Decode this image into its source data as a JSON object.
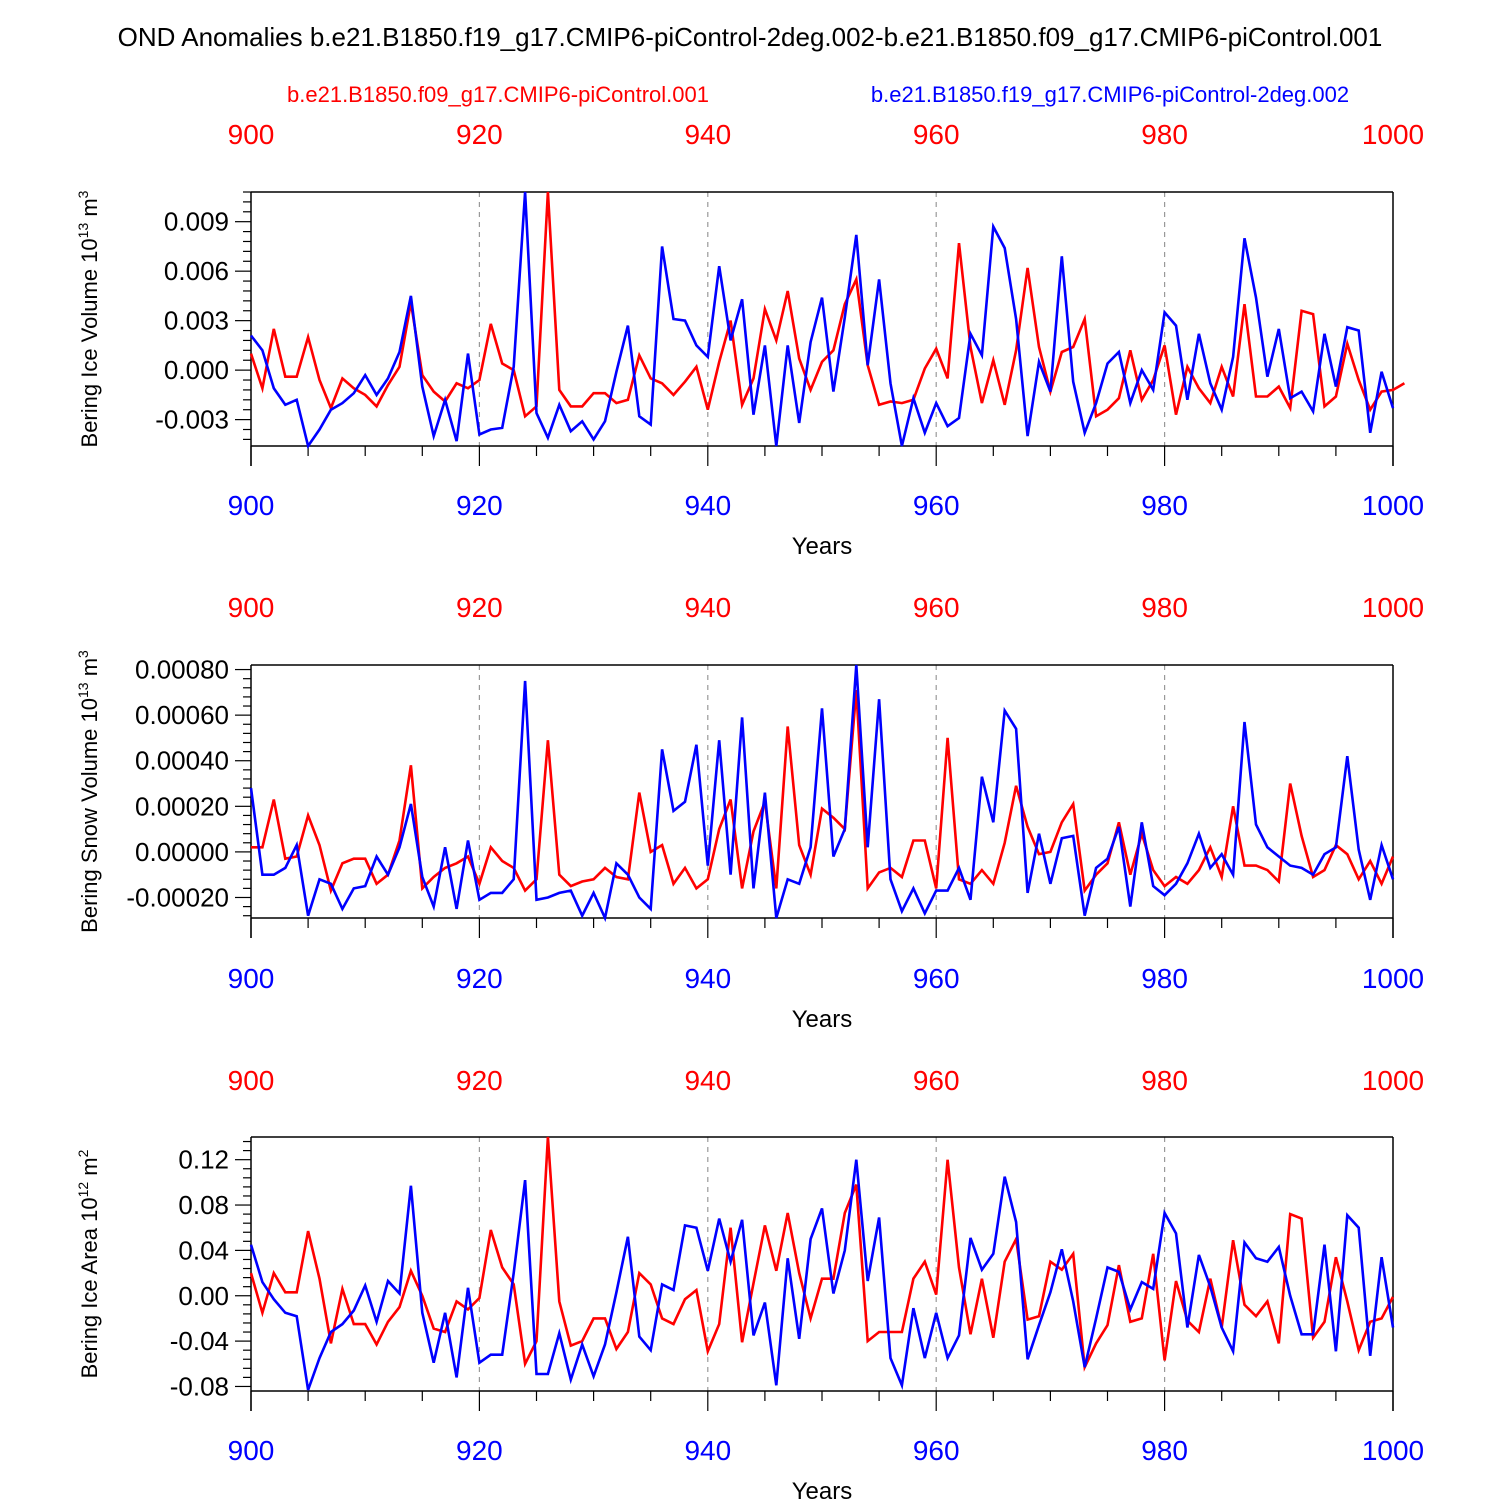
{
  "figure": {
    "title": "OND Anomalies b.e21.B1850.f19_g17.CMIP6-piControl-2deg.002-b.e21.B1850.f09_g17.CMIP6-piControl.001",
    "legend_red": "b.e21.B1850.f09_g17.CMIP6-piControl.001",
    "legend_blue": "b.e21.B1850.f19_g17.CMIP6-piControl-2deg.002"
  },
  "colors": {
    "red": "#ff0000",
    "blue": "#0000ff",
    "axis": "#000000",
    "grid": "#999999"
  },
  "chart_data": [
    {
      "type": "line",
      "title": "",
      "xlabel": "Years",
      "ylabel_main": "Bering Ice Volume 10",
      "ylabel_exp": "13",
      "ylabel_unit": " m",
      "ylabel_unit_exp": "3",
      "xlim": [
        900,
        1000
      ],
      "ylim": [
        -0.0046,
        0.0108
      ],
      "xticks": [
        900,
        920,
        940,
        960,
        980,
        1000
      ],
      "xtick_labels": [
        "900",
        "920",
        "940",
        "960",
        "980",
        "1000"
      ],
      "yticks": [
        -0.003,
        0.0,
        0.003,
        0.006,
        0.009
      ],
      "ytick_labels": [
        "-0.003",
        "0.000",
        "0.003",
        "0.006",
        "0.009"
      ],
      "series": [
        {
          "name": "b.e21.B1850.f09_g17.CMIP6-piControl.001",
          "color": "red",
          "x_start": 900,
          "values": [
            0.001,
            -0.0011,
            0.0025,
            -0.0004,
            -0.0004,
            0.002,
            -0.0006,
            -0.0023,
            -0.0005,
            -0.0011,
            -0.0015,
            -0.0022,
            -0.0009,
            0.0002,
            0.0041,
            -0.0003,
            -0.0013,
            -0.0019,
            -0.0008,
            -0.0011,
            -0.0006,
            0.0028,
            0.0004,
            0.0,
            -0.0028,
            -0.0022,
            0.0108,
            -0.0012,
            -0.0022,
            -0.0022,
            -0.0014,
            -0.0014,
            -0.002,
            -0.0018,
            0.0009,
            -0.0005,
            -0.0008,
            -0.0015,
            -0.0007,
            0.0002,
            -0.0024,
            0.0005,
            0.003,
            -0.0021,
            -0.0005,
            0.0037,
            0.0018,
            0.0048,
            0.0007,
            -0.0012,
            0.0005,
            0.0012,
            0.004,
            0.0055,
            0.0003,
            -0.0021,
            -0.0019,
            -0.002,
            -0.0018,
            0.0001,
            0.0013,
            -0.0005,
            0.0077,
            0.0014,
            -0.002,
            0.0006,
            -0.0021,
            0.0012,
            0.0062,
            0.0014,
            -0.0013,
            0.0011,
            0.0014,
            0.0031,
            -0.0028,
            -0.0024,
            -0.0017,
            0.0012,
            -0.0018,
            -0.0006,
            0.0015,
            -0.0027,
            0.0002,
            -0.0011,
            -0.002,
            0.0002,
            -0.0016,
            0.004,
            -0.0016,
            -0.0016,
            -0.001,
            -0.0023,
            0.0036,
            0.0034,
            -0.0022,
            -0.0016,
            0.0016,
            -0.0006,
            -0.0024,
            -0.0013,
            -0.0012,
            -0.0008
          ]
        },
        {
          "name": "b.e21.B1850.f19_g17.CMIP6-piControl-2deg.002",
          "color": "blue",
          "x_start": 900,
          "values": [
            0.0021,
            0.0012,
            -0.0011,
            -0.0021,
            -0.0018,
            -0.0046,
            -0.0036,
            -0.0024,
            -0.002,
            -0.0014,
            -0.0003,
            -0.0015,
            -0.0005,
            0.0011,
            0.0045,
            -0.001,
            -0.004,
            -0.0018,
            -0.0043,
            0.001,
            -0.0039,
            -0.0036,
            -0.0035,
            0.0002,
            0.0108,
            -0.0026,
            -0.0041,
            -0.0021,
            -0.0037,
            -0.0031,
            -0.0042,
            -0.0031,
            -0.0001,
            0.0027,
            -0.0028,
            -0.0033,
            0.0075,
            0.0031,
            0.003,
            0.0015,
            0.0008,
            0.0063,
            0.0018,
            0.0043,
            -0.0027,
            0.0015,
            -0.0046,
            0.0015,
            -0.0032,
            0.0017,
            0.0044,
            -0.0013,
            0.0032,
            0.0082,
            0.0003,
            0.0055,
            -0.0008,
            -0.0046,
            -0.0017,
            -0.0038,
            -0.002,
            -0.0034,
            -0.0029,
            0.0022,
            0.0009,
            0.0087,
            0.0074,
            0.0031,
            -0.004,
            0.0005,
            -0.0013,
            0.0069,
            -0.0007,
            -0.0038,
            -0.002,
            0.0004,
            0.0011,
            -0.002,
            0.0,
            -0.0012,
            0.0035,
            0.0027,
            -0.0018,
            0.0022,
            -0.0008,
            -0.0024,
            0.0008,
            0.008,
            0.0044,
            -0.0004,
            0.0025,
            -0.0017,
            -0.0013,
            -0.0025,
            0.0022,
            -0.001,
            0.0026,
            0.0024,
            -0.0038,
            -0.0001,
            -0.0023
          ]
        }
      ]
    },
    {
      "type": "line",
      "title": "",
      "xlabel": "Years",
      "ylabel_main": "Bering Snow Volume 10",
      "ylabel_exp": "13",
      "ylabel_unit": " m",
      "ylabel_unit_exp": "3",
      "xlim": [
        900,
        1000
      ],
      "ylim": [
        -0.00029,
        0.00082
      ],
      "xticks": [
        900,
        920,
        940,
        960,
        980,
        1000
      ],
      "xtick_labels": [
        "900",
        "920",
        "940",
        "960",
        "980",
        "1000"
      ],
      "yticks": [
        -0.0002,
        0.0,
        0.0002,
        0.0004,
        0.0006,
        0.0008
      ],
      "ytick_labels": [
        "-0.00020",
        "0.00000",
        "0.00020",
        "0.00040",
        "0.00060",
        "0.00080"
      ],
      "series": [
        {
          "name": "b.e21.B1850.f09_g17.CMIP6-piControl.001",
          "color": "red",
          "x_start": 900,
          "values": [
            2e-05,
            2e-05,
            0.00023,
            -3e-05,
            -2e-05,
            0.00016,
            3e-05,
            -0.00017,
            -5e-05,
            -3e-05,
            -3e-05,
            -0.00014,
            -0.0001,
            5e-05,
            0.00038,
            -0.00016,
            -0.00011,
            -7e-05,
            -5e-05,
            -2e-05,
            -0.00014,
            2e-05,
            -4e-05,
            -7e-05,
            -0.00017,
            -0.00012,
            0.00049,
            -0.0001,
            -0.00015,
            -0.00013,
            -0.00012,
            -7e-05,
            -0.00011,
            -0.00012,
            0.00026,
            0.0,
            3e-05,
            -0.00014,
            -7e-05,
            -0.00016,
            -0.00012,
            0.0001,
            0.00023,
            -0.00016,
            9e-05,
            0.00022,
            -0.00016,
            0.00055,
            3e-05,
            -0.0001,
            0.00019,
            0.00015,
            0.0001,
            0.00071,
            -0.00016,
            -9e-05,
            -7e-05,
            -0.00011,
            5e-05,
            5e-05,
            -0.00016,
            0.0005,
            -0.00012,
            -0.00014,
            -8e-05,
            -0.00014,
            4e-05,
            0.00029,
            0.00011,
            -1e-05,
            0.0,
            0.00013,
            0.00021,
            -0.00017,
            -0.0001,
            -5e-05,
            0.00013,
            -0.0001,
            8e-05,
            -8e-05,
            -0.00015,
            -0.00011,
            -0.00014,
            -8e-05,
            2e-05,
            -0.00011,
            0.0002,
            -6e-05,
            -6e-05,
            -8e-05,
            -0.00013,
            0.0003,
            7e-05,
            -0.00011,
            -8e-05,
            3e-05,
            -1e-05,
            -0.00012,
            -4e-05,
            -0.00014,
            -2e-05
          ]
        },
        {
          "name": "b.e21.B1850.f19_g17.CMIP6-piControl-2deg.002",
          "color": "blue",
          "x_start": 900,
          "values": [
            0.00028,
            -0.0001,
            -0.0001,
            -7e-05,
            3e-05,
            -0.00028,
            -0.00012,
            -0.00014,
            -0.00025,
            -0.00016,
            -0.00015,
            -2e-05,
            -0.0001,
            2e-05,
            0.00021,
            -0.00011,
            -0.00024,
            2e-05,
            -0.00025,
            5e-05,
            -0.00021,
            -0.00018,
            -0.00018,
            -0.00012,
            0.00075,
            -0.00021,
            -0.0002,
            -0.00018,
            -0.00017,
            -0.00028,
            -0.00018,
            -0.00029,
            -5e-05,
            -0.0001,
            -0.0002,
            -0.00025,
            0.00045,
            0.00018,
            0.00022,
            0.00047,
            -6e-05,
            0.00049,
            -0.0001,
            0.00059,
            -0.00016,
            0.00026,
            -0.00029,
            -0.00012,
            -0.00014,
            2e-05,
            0.00063,
            -2e-05,
            0.0001,
            0.00082,
            2e-05,
            0.00067,
            -0.00012,
            -0.00026,
            -0.00016,
            -0.00027,
            -0.00017,
            -0.00017,
            -7e-05,
            -0.00021,
            0.00033,
            0.00013,
            0.00062,
            0.00054,
            -0.00018,
            8e-05,
            -0.00014,
            6e-05,
            7e-05,
            -0.00028,
            -7e-05,
            -3e-05,
            0.00011,
            -0.00024,
            0.00013,
            -0.00015,
            -0.00019,
            -0.00014,
            -5e-05,
            8e-05,
            -7e-05,
            -1e-05,
            -0.0001,
            0.00057,
            0.00012,
            2e-05,
            -2e-05,
            -6e-05,
            -7e-05,
            -0.0001,
            -1e-05,
            2e-05,
            0.00042,
            1e-05,
            -0.00021,
            3e-05,
            -0.00012
          ]
        }
      ]
    },
    {
      "type": "line",
      "title": "",
      "xlabel": "Years",
      "ylabel_main": "Bering Ice Area 10",
      "ylabel_exp": "12",
      "ylabel_unit": " m",
      "ylabel_unit_exp": "2",
      "xlim": [
        900,
        1000
      ],
      "ylim": [
        -0.084,
        0.14
      ],
      "xticks": [
        900,
        920,
        940,
        960,
        980,
        1000
      ],
      "xtick_labels": [
        "900",
        "920",
        "940",
        "960",
        "980",
        "1000"
      ],
      "yticks": [
        -0.08,
        -0.04,
        0.0,
        0.04,
        0.08,
        0.12
      ],
      "ytick_labels": [
        "-0.08",
        "-0.04",
        "0.00",
        "0.04",
        "0.08",
        "0.12"
      ],
      "series": [
        {
          "name": "b.e21.B1850.f09_g17.CMIP6-piControl.001",
          "color": "red",
          "x_start": 900,
          "values": [
            0.02,
            -0.015,
            0.02,
            0.003,
            0.003,
            0.057,
            0.015,
            -0.042,
            0.006,
            -0.025,
            -0.025,
            -0.043,
            -0.023,
            -0.01,
            0.022,
            0.0,
            -0.029,
            -0.032,
            -0.005,
            -0.012,
            -0.002,
            0.058,
            0.025,
            0.01,
            -0.06,
            -0.04,
            0.14,
            -0.005,
            -0.044,
            -0.04,
            -0.02,
            -0.02,
            -0.047,
            -0.032,
            0.02,
            0.01,
            -0.02,
            -0.025,
            -0.003,
            0.005,
            -0.049,
            -0.025,
            0.06,
            -0.041,
            0.011,
            0.062,
            0.022,
            0.073,
            0.02,
            -0.02,
            0.015,
            0.015,
            0.073,
            0.098,
            -0.04,
            -0.032,
            -0.032,
            -0.032,
            0.015,
            0.03,
            0.001,
            0.12,
            0.025,
            -0.034,
            0.015,
            -0.037,
            0.03,
            0.05,
            -0.021,
            -0.018,
            0.03,
            0.023,
            0.037,
            -0.063,
            -0.042,
            -0.026,
            0.027,
            -0.023,
            -0.02,
            0.037,
            -0.057,
            0.013,
            -0.022,
            -0.032,
            0.015,
            -0.028,
            0.049,
            -0.008,
            -0.018,
            -0.005,
            -0.042,
            0.072,
            0.068,
            -0.037,
            -0.023,
            0.034,
            -0.005,
            -0.048,
            -0.023,
            -0.02,
            -0.001
          ]
        },
        {
          "name": "b.e21.B1850.f19_g17.CMIP6-piControl-2deg.002",
          "color": "blue",
          "x_start": 900,
          "values": [
            0.045,
            0.012,
            -0.003,
            -0.015,
            -0.018,
            -0.083,
            -0.055,
            -0.032,
            -0.025,
            -0.013,
            0.009,
            -0.023,
            0.013,
            0.002,
            0.097,
            -0.015,
            -0.059,
            -0.015,
            -0.072,
            0.007,
            -0.059,
            -0.052,
            -0.052,
            0.02,
            0.102,
            -0.069,
            -0.069,
            -0.033,
            -0.074,
            -0.043,
            -0.071,
            -0.043,
            0.003,
            0.052,
            -0.036,
            -0.048,
            0.01,
            0.005,
            0.062,
            0.06,
            0.022,
            0.068,
            0.03,
            0.067,
            -0.035,
            -0.006,
            -0.079,
            0.033,
            -0.038,
            0.05,
            0.077,
            0.002,
            0.04,
            0.12,
            0.013,
            0.069,
            -0.055,
            -0.079,
            -0.011,
            -0.055,
            -0.015,
            -0.055,
            -0.035,
            0.051,
            0.023,
            0.037,
            0.105,
            0.065,
            -0.056,
            -0.026,
            0.003,
            0.041,
            -0.005,
            -0.063,
            -0.02,
            0.025,
            0.021,
            -0.012,
            0.012,
            0.006,
            0.073,
            0.055,
            -0.028,
            0.036,
            0.008,
            -0.028,
            -0.049,
            0.047,
            0.033,
            0.03,
            0.043,
            0.0,
            -0.034,
            -0.034,
            0.045,
            -0.049,
            0.071,
            0.06,
            -0.053,
            0.034,
            -0.028
          ]
        }
      ]
    }
  ]
}
